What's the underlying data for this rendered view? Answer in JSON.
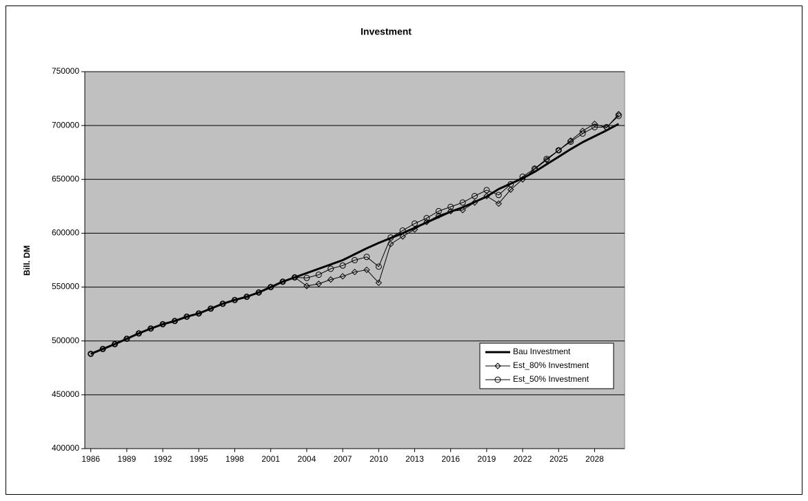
{
  "chart_data": {
    "type": "line",
    "title": "Investment",
    "y_label": "Bill. DM",
    "x": [
      1986,
      1987,
      1988,
      1989,
      1990,
      1991,
      1992,
      1993,
      1994,
      1995,
      1996,
      1997,
      1998,
      1999,
      2000,
      2001,
      2002,
      2003,
      2004,
      2005,
      2006,
      2007,
      2008,
      2009,
      2010,
      2011,
      2012,
      2013,
      2014,
      2015,
      2016,
      2017,
      2018,
      2019,
      2020,
      2021,
      2022,
      2023,
      2024,
      2025,
      2026,
      2027,
      2028,
      2029,
      2030
    ],
    "xlim": [
      1985.5,
      2030.5
    ],
    "xticks": [
      1986,
      1989,
      1992,
      1995,
      1998,
      2001,
      2004,
      2007,
      2010,
      2013,
      2016,
      2019,
      2022,
      2025,
      2028
    ],
    "ylim": [
      400000,
      750000
    ],
    "yticks": [
      400000,
      450000,
      500000,
      550000,
      600000,
      650000,
      700000,
      750000
    ],
    "grid": true,
    "legend": "lower right",
    "series": [
      {
        "name": "Bau Investment",
        "color": "#000000",
        "line_width": 3,
        "marker": "none",
        "values": [
          488000,
          492500,
          497000,
          502000,
          507000,
          511500,
          515500,
          518500,
          522500,
          525500,
          530000,
          534500,
          538000,
          541000,
          545000,
          550000,
          555000,
          559000,
          563000,
          567000,
          571000,
          575000,
          580500,
          586000,
          591000,
          595500,
          600000,
          605000,
          610000,
          615000,
          620000,
          624000,
          629000,
          634000,
          641000,
          646000,
          651000,
          657000,
          664000,
          671000,
          678000,
          684500,
          690000,
          695500,
          701500
        ]
      },
      {
        "name": "Est_80% Investment",
        "color": "#000000",
        "line_width": 1,
        "marker": "diamond",
        "values": [
          488000,
          492500,
          497000,
          502000,
          507000,
          511500,
          515500,
          518500,
          522500,
          525500,
          530000,
          534500,
          538000,
          541000,
          545000,
          550000,
          555000,
          559000,
          551000,
          553000,
          557000,
          560000,
          564000,
          566000,
          554000,
          590000,
          597000,
          603500,
          610500,
          616500,
          620500,
          621500,
          628500,
          634500,
          627500,
          640500,
          650000,
          659500,
          668000,
          677000,
          686000,
          695000,
          701500,
          698000,
          710500
        ]
      },
      {
        "name": "Est_50% Investment",
        "color": "#000000",
        "line_width": 1,
        "marker": "circle",
        "values": [
          488000,
          492500,
          497000,
          502000,
          507000,
          511500,
          515500,
          518500,
          522500,
          525500,
          530000,
          534500,
          538000,
          541000,
          545000,
          550000,
          555000,
          559000,
          558500,
          561500,
          567000,
          570000,
          575000,
          578000,
          569000,
          596000,
          602500,
          609000,
          614000,
          620500,
          624500,
          628500,
          634500,
          640000,
          635500,
          645500,
          652500,
          660000,
          669000,
          677000,
          685000,
          692500,
          698500,
          698500,
          709000
        ]
      }
    ]
  }
}
